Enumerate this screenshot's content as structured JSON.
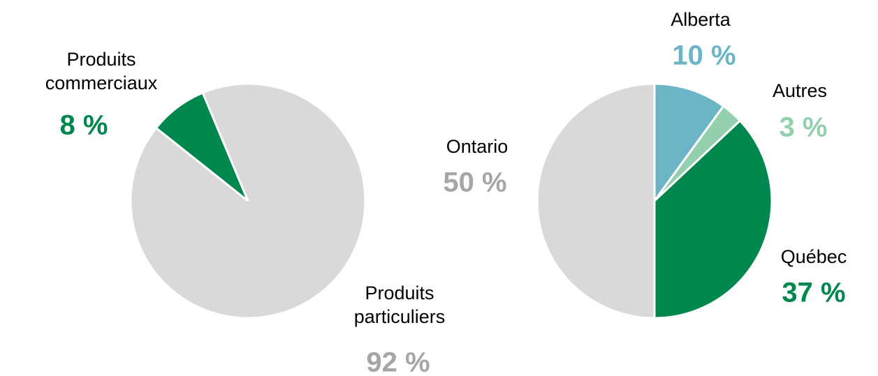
{
  "chart_data": [
    {
      "type": "pie",
      "categories": [
        "Produits particuliers",
        "Produits commerciaux"
      ],
      "values": [
        92,
        8
      ],
      "value_labels": [
        "92 %",
        "8 %"
      ],
      "colors": [
        "#d9d9d9",
        "#00874e"
      ],
      "label_colors": [
        "#a6a6a6",
        "#00874e"
      ]
    },
    {
      "type": "pie",
      "categories": [
        "Alberta",
        "Autres",
        "Québec",
        "Ontario"
      ],
      "values": [
        10,
        3,
        37,
        50
      ],
      "value_labels": [
        "10 %",
        "3 %",
        "37 %",
        "50 %"
      ],
      "colors": [
        "#6cb5c7",
        "#94cfae",
        "#00874e",
        "#d9d9d9"
      ],
      "label_colors": [
        "#6cb5c7",
        "#94cfae",
        "#00874e",
        "#a6a6a6"
      ]
    }
  ]
}
